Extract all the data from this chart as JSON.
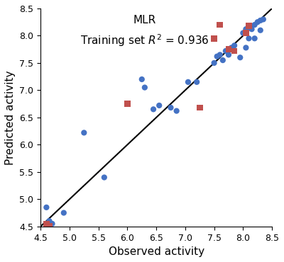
{
  "title_line1": "MLR",
  "title_line2": "Training set $R^2$ = 0.936",
  "xlabel": "Observed activity",
  "ylabel": "Predicted activity",
  "xlim": [
    4.5,
    8.5
  ],
  "ylim": [
    4.5,
    8.5
  ],
  "xticks": [
    4.5,
    5.0,
    5.5,
    6.0,
    6.5,
    7.0,
    7.5,
    8.0,
    8.5
  ],
  "yticks": [
    4.5,
    5.0,
    5.5,
    6.0,
    6.5,
    7.0,
    7.5,
    8.0,
    8.5
  ],
  "blue_circles": [
    [
      4.6,
      4.85
    ],
    [
      4.65,
      4.6
    ],
    [
      4.7,
      4.55
    ],
    [
      4.9,
      4.75
    ],
    [
      5.25,
      6.22
    ],
    [
      5.6,
      5.4
    ],
    [
      6.25,
      7.2
    ],
    [
      6.3,
      7.05
    ],
    [
      6.45,
      6.65
    ],
    [
      6.55,
      6.72
    ],
    [
      6.75,
      6.68
    ],
    [
      6.85,
      6.62
    ],
    [
      7.05,
      7.15
    ],
    [
      7.2,
      7.15
    ],
    [
      7.5,
      7.5
    ],
    [
      7.55,
      7.62
    ],
    [
      7.6,
      7.65
    ],
    [
      7.65,
      7.55
    ],
    [
      7.7,
      7.72
    ],
    [
      7.75,
      7.65
    ],
    [
      7.8,
      7.78
    ],
    [
      7.85,
      7.82
    ],
    [
      7.95,
      7.6
    ],
    [
      8.0,
      8.05
    ],
    [
      8.05,
      8.12
    ],
    [
      8.1,
      8.15
    ],
    [
      8.15,
      8.12
    ],
    [
      8.2,
      8.2
    ],
    [
      8.25,
      8.25
    ],
    [
      8.3,
      8.28
    ],
    [
      8.05,
      7.78
    ],
    [
      8.1,
      7.95
    ],
    [
      8.2,
      7.95
    ],
    [
      8.3,
      8.1
    ],
    [
      8.35,
      8.3
    ]
  ],
  "red_squares": [
    [
      4.6,
      4.55
    ],
    [
      4.65,
      4.5
    ],
    [
      6.0,
      6.75
    ],
    [
      7.25,
      6.68
    ],
    [
      7.5,
      7.95
    ],
    [
      7.6,
      8.2
    ],
    [
      7.75,
      7.75
    ],
    [
      7.85,
      7.72
    ],
    [
      8.05,
      8.05
    ],
    [
      8.1,
      8.18
    ]
  ],
  "blue_color": "#4472C4",
  "red_color": "#C0504D",
  "line_color": "black",
  "bg_color": "#ffffff",
  "fontsize_title": 11,
  "fontsize_axis": 11,
  "tick_fontsize": 9
}
